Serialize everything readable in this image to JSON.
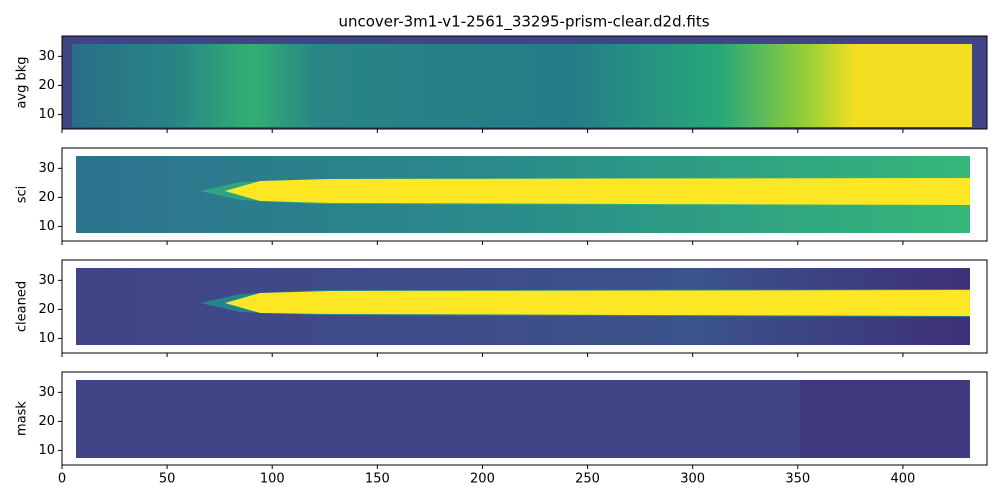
{
  "chart_data": [
    {
      "type": "image",
      "title": "uncover-3m1-v1-2561_33295-prism-clear.d2d.fits",
      "ylabel": "avg bkg",
      "xlim": [
        0,
        440
      ],
      "xticks": [
        0,
        50,
        100,
        150,
        200,
        250,
        300,
        350,
        400
      ],
      "ylim": [
        5,
        37
      ],
      "yticks": [
        10,
        20,
        30
      ]
    },
    {
      "type": "image",
      "ylabel": "sci",
      "xlim": [
        0,
        440
      ],
      "xticks": [
        0,
        50,
        100,
        150,
        200,
        250,
        300,
        350,
        400
      ],
      "ylim": [
        5,
        37
      ],
      "yticks": [
        10,
        20,
        30
      ]
    },
    {
      "type": "image",
      "ylabel": "cleaned",
      "xlim": [
        0,
        440
      ],
      "xticks": [
        0,
        50,
        100,
        150,
        200,
        250,
        300,
        350,
        400
      ],
      "ylim": [
        5,
        37
      ],
      "yticks": [
        10,
        20,
        30
      ]
    },
    {
      "type": "image",
      "ylabel": "mask",
      "xlim": [
        0,
        440
      ],
      "xticks": [
        0,
        50,
        100,
        150,
        200,
        250,
        300,
        350,
        400
      ],
      "ylim": [
        5,
        37
      ],
      "yticks": [
        10,
        20,
        30
      ]
    }
  ]
}
